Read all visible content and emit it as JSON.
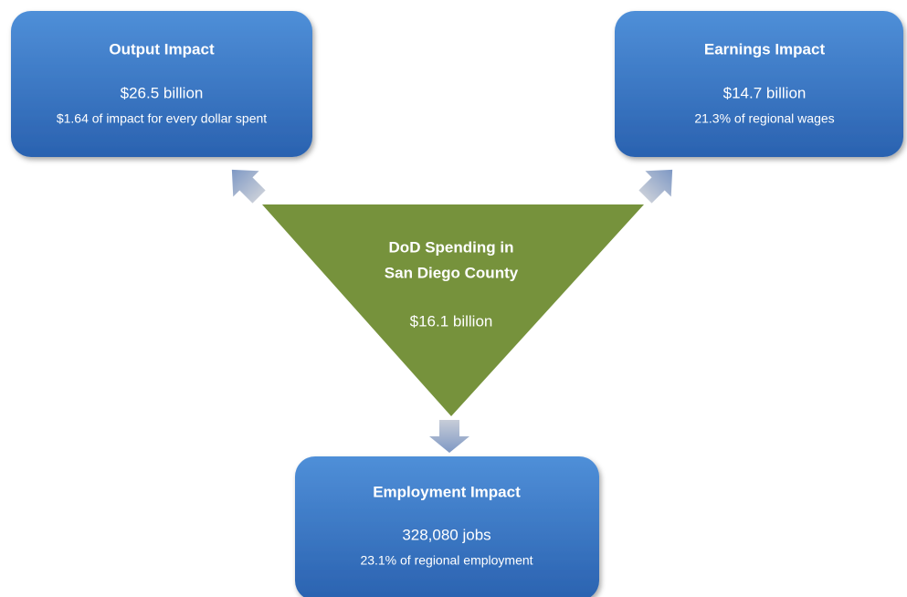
{
  "nodes": [
    {
      "title": "Output Impact",
      "value": "$26.5 billion",
      "detail": "$1.64 of impact for every dollar spent"
    },
    {
      "title": "Earnings Impact",
      "value": "$14.7 billion",
      "detail": "21.3% of regional wages"
    },
    {
      "title": "Employment Impact",
      "value": "328,080 jobs",
      "detail": "23.1% of regional employment"
    }
  ],
  "center": {
    "title": [
      "DoD Spending in",
      "San Diego County"
    ],
    "value": "$16.1 billion"
  }
}
